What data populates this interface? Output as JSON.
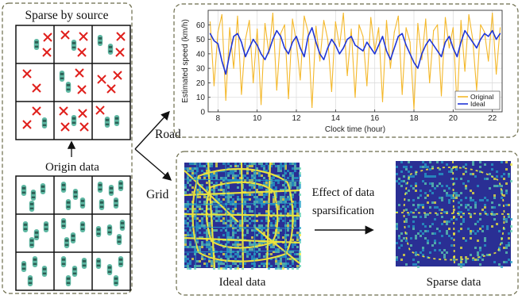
{
  "left_panel": {
    "title": "Sparse by source",
    "origin_label": "Origin data",
    "colors": {
      "car": "#5fb8a3",
      "car_dark": "#2e5f55",
      "cross": "#e0201c",
      "border": "#6b6b4a"
    }
  },
  "branches": {
    "road_label": "Road",
    "grid_label": "Grid"
  },
  "road_panel": {
    "chart_data": {
      "type": "line",
      "title": "",
      "xlabel": "Clock time (hour)",
      "ylabel": "Estimated speed (km/h)",
      "xlim": [
        7.5,
        22.5
      ],
      "ylim": [
        0,
        70
      ],
      "xticks": [
        8,
        10,
        12,
        14,
        16,
        18,
        20,
        22
      ],
      "yticks": [
        0,
        10,
        20,
        30,
        40,
        50,
        60
      ],
      "grid": true,
      "legend_position": "bottom-right",
      "series": [
        {
          "name": "Original",
          "color": "#f4b82a",
          "x": [
            7.6,
            7.8,
            8.0,
            8.2,
            8.4,
            8.6,
            8.8,
            9.0,
            9.2,
            9.4,
            9.6,
            9.8,
            10.0,
            10.2,
            10.4,
            10.6,
            10.8,
            11.0,
            11.2,
            11.4,
            11.6,
            11.8,
            12.0,
            12.2,
            12.4,
            12.6,
            12.8,
            13.0,
            13.2,
            13.4,
            13.6,
            13.8,
            14.0,
            14.2,
            14.4,
            14.6,
            14.8,
            15.0,
            15.2,
            15.4,
            15.6,
            15.8,
            16.0,
            16.2,
            16.4,
            16.6,
            16.8,
            17.0,
            17.2,
            17.4,
            17.6,
            17.8,
            18.0,
            18.2,
            18.4,
            18.6,
            18.8,
            19.0,
            19.2,
            19.4,
            19.6,
            19.8,
            20.0,
            20.2,
            20.4,
            20.6,
            20.8,
            21.0,
            21.2,
            21.4,
            21.6,
            21.8,
            22.0,
            22.2,
            22.4
          ],
          "values": [
            62,
            18,
            55,
            67,
            8,
            58,
            30,
            66,
            12,
            50,
            63,
            20,
            57,
            5,
            61,
            40,
            68,
            15,
            54,
            60,
            9,
            64,
            48,
            22,
            66,
            55,
            3,
            59,
            35,
            63,
            50,
            14,
            62,
            45,
            68,
            25,
            57,
            10,
            60,
            52,
            18,
            65,
            42,
            58,
            7,
            63,
            30,
            55,
            66,
            12,
            58,
            48,
            2,
            61,
            36,
            64,
            20,
            56,
            60,
            11,
            65,
            44,
            58,
            3,
            63,
            28,
            67,
            50,
            15,
            60,
            55,
            35,
            68,
            26,
            58
          ]
        },
        {
          "name": "Ideal",
          "color": "#1f35d6",
          "x": [
            7.6,
            7.8,
            8.0,
            8.2,
            8.4,
            8.6,
            8.8,
            9.0,
            9.2,
            9.4,
            9.6,
            9.8,
            10.0,
            10.2,
            10.4,
            10.6,
            10.8,
            11.0,
            11.2,
            11.4,
            11.6,
            11.8,
            12.0,
            12.2,
            12.4,
            12.6,
            12.8,
            13.0,
            13.2,
            13.4,
            13.6,
            13.8,
            14.0,
            14.2,
            14.4,
            14.6,
            14.8,
            15.0,
            15.2,
            15.4,
            15.6,
            15.8,
            16.0,
            16.2,
            16.4,
            16.6,
            16.8,
            17.0,
            17.2,
            17.4,
            17.6,
            17.8,
            18.0,
            18.2,
            18.4,
            18.6,
            18.8,
            19.0,
            19.2,
            19.4,
            19.6,
            19.8,
            20.0,
            20.2,
            20.4,
            20.6,
            20.8,
            21.0,
            21.2,
            21.4,
            21.6,
            21.8,
            22.0,
            22.2,
            22.4
          ],
          "values": [
            54,
            49,
            47,
            35,
            26,
            40,
            52,
            54,
            48,
            38,
            44,
            50,
            46,
            40,
            36,
            42,
            50,
            56,
            52,
            44,
            40,
            48,
            52,
            44,
            38,
            52,
            58,
            48,
            40,
            36,
            44,
            50,
            46,
            40,
            44,
            50,
            52,
            46,
            44,
            42,
            48,
            44,
            40,
            46,
            52,
            42,
            36,
            44,
            52,
            54,
            46,
            40,
            34,
            30,
            40,
            46,
            50,
            46,
            42,
            38,
            48,
            52,
            44,
            38,
            48,
            56,
            52,
            48,
            44,
            50,
            54,
            52,
            56,
            50,
            54
          ]
        }
      ]
    }
  },
  "grid_panel": {
    "arrow_caption_line1": "Effect of data",
    "arrow_caption_line2": "sparsification",
    "ideal_label": "Ideal data",
    "sparse_label": "Sparse data",
    "colors": {
      "background": "#2a2f94",
      "road": "#f2e93a",
      "mid": "#25a2c8",
      "light": "#5fd0b0"
    }
  }
}
